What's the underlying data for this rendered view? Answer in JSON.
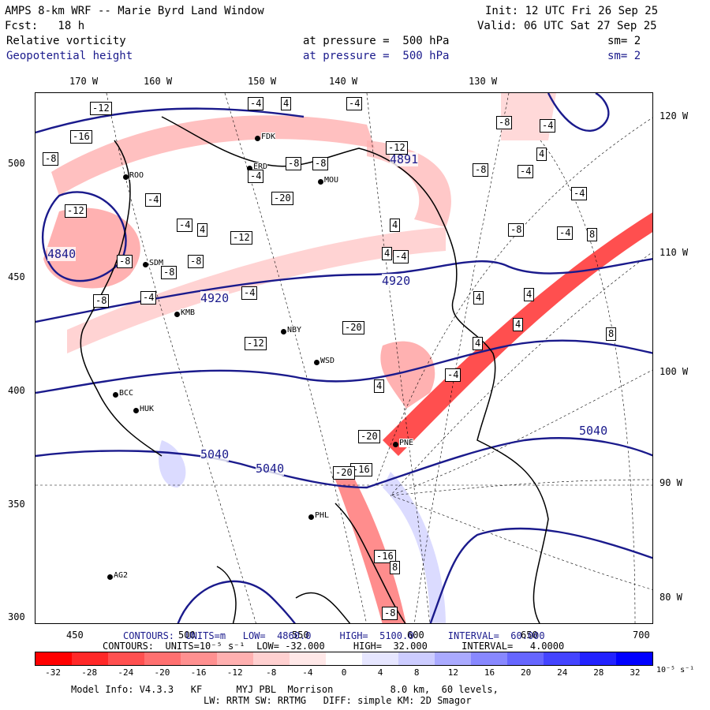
{
  "header": {
    "title": "AMPS 8-km WRF -- Marie Byrd Land Window",
    "init": "Init: 12 UTC Fri 26 Sep 25",
    "fcst": "Fcst:   18 h",
    "valid": "Valid: 06 UTC Sat 27 Sep 25",
    "field1": {
      "name": "Relative vorticity",
      "pressure": "at pressure =  500 hPa",
      "sm": "sm= 2"
    },
    "field2": {
      "name": "Geopotential height",
      "pressure": "at pressure =  500 hPa",
      "sm": "sm= 2"
    }
  },
  "axes": {
    "top_lon": [
      "170 W",
      "160 W",
      "150 W",
      "140 W",
      "130 W"
    ],
    "right_lon": [
      "120 W",
      "110 W",
      "100 W",
      "90 W",
      "80 W"
    ],
    "left_y": [
      "500",
      "450",
      "400",
      "350",
      "300"
    ],
    "bottom_x": [
      "450",
      "500",
      "550",
      "600",
      "650",
      "700"
    ]
  },
  "stations": [
    "ROO",
    "FDK",
    "ERD",
    "MOU",
    "SDM",
    "KMB",
    "NBY",
    "WSD",
    "BCC",
    "HUK",
    "PNE",
    "PHL",
    "AG2"
  ],
  "height_labels": [
    "4840",
    "4891",
    "4920",
    "4920",
    "5040",
    "5040",
    "5040"
  ],
  "contour_info": {
    "height": "CONTOURS:  UNITS=m   LOW=  4860.0     HIGH=  5100.0      INTERVAL=  60.000",
    "vort": "CONTOURS:  UNITS=10⁻⁵ s⁻¹  LOW= -32.000     HIGH=  32.000      INTERVAL=   4.0000"
  },
  "colorbar": {
    "labels": [
      "-32",
      "-28",
      "-24",
      "-20",
      "-16",
      "-12",
      "-8",
      "-4",
      "0",
      "4",
      "8",
      "12",
      "16",
      "20",
      "24",
      "28",
      "32"
    ],
    "unit": "10⁻⁵ s⁻¹",
    "colors": [
      "#ff0000",
      "#ff2828",
      "#ff5050",
      "#ff7070",
      "#ff9090",
      "#ffb0b0",
      "#ffd0d0",
      "#ffe8e8",
      "#ffffff",
      "#e6e6ff",
      "#ccccff",
      "#aaaaff",
      "#8888ff",
      "#6666ff",
      "#4444ff",
      "#2222ff",
      "#0000ff"
    ]
  },
  "footer": {
    "model": "Model Info: V4.3.3   KF      MYJ PBL  Morrison          8.0 km,  60 levels,",
    "physics": "LW: RRTM SW: RRTMG   DIFF: simple KM: 2D Smagor"
  },
  "vort_labels": [
    "-12",
    "-16",
    "-8",
    "-4",
    "4",
    "-4",
    "-4",
    "-8",
    "-8",
    "-12",
    "-8",
    "-4",
    "4",
    "-8",
    "-4",
    "-12",
    "-8",
    "-8",
    "-4",
    "-4",
    "4",
    "-8",
    "-12",
    "-20",
    "-4",
    "-8",
    "-4",
    "-12",
    "-20",
    "4",
    "4",
    "-8",
    "8",
    "4",
    "8",
    "4",
    "-4",
    "-20",
    "-16",
    "-20",
    "-16",
    "-8",
    "8",
    "4",
    "4",
    "-4",
    "4",
    "-4",
    "-4"
  ],
  "colors": {
    "height_contour": "#1a1a8c",
    "coast": "#000000"
  }
}
